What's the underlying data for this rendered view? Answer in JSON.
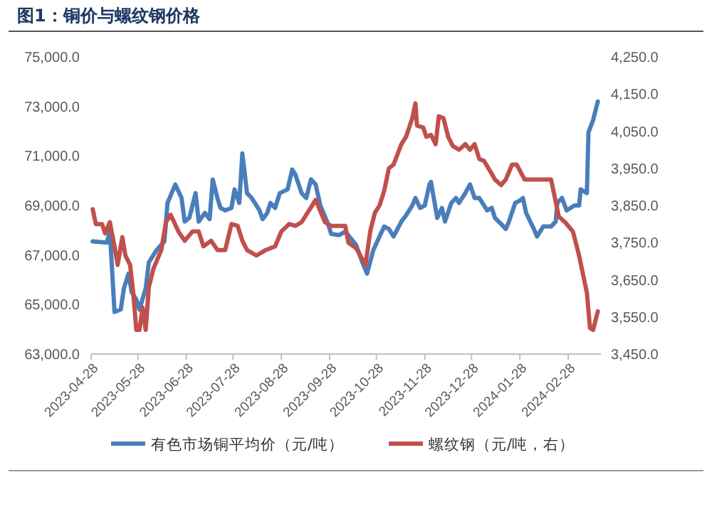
{
  "chart_data": {
    "type": "line",
    "title": "图1：铜价与螺纹钢价格",
    "legend": "bottom",
    "xlim": [
      "2023-04-28",
      "2024-03-20"
    ],
    "xticks": [
      "2023-04-28",
      "2023-05-28",
      "2023-06-28",
      "2023-07-28",
      "2023-08-28",
      "2023-09-28",
      "2023-10-28",
      "2023-11-28",
      "2023-12-28",
      "2024-01-28",
      "2024-02-28"
    ],
    "ylim": [
      63000,
      75000
    ],
    "yticks": [
      {
        "value": 63000,
        "label": "63,000.0"
      },
      {
        "value": 65000,
        "label": "65,000.0"
      },
      {
        "value": 67000,
        "label": "67,000.0"
      },
      {
        "value": 69000,
        "label": "69,000.0"
      },
      {
        "value": 71000,
        "label": "71,000.0"
      },
      {
        "value": 73000,
        "label": "73,000.0"
      },
      {
        "value": 75000,
        "label": "75,000.0"
      }
    ],
    "y2lim": [
      3450,
      4250
    ],
    "y2ticks": [
      {
        "value": 3450,
        "label": "3,450.0"
      },
      {
        "value": 3550,
        "label": "3,550.0"
      },
      {
        "value": 3650,
        "label": "3,650.0"
      },
      {
        "value": 3750,
        "label": "3,750.0"
      },
      {
        "value": 3850,
        "label": "3,850.0"
      },
      {
        "value": 3950,
        "label": "3,950.0"
      },
      {
        "value": 4050,
        "label": "4,050.0"
      },
      {
        "value": 4150,
        "label": "4,150.0"
      },
      {
        "value": 4250,
        "label": "4,250.0"
      }
    ],
    "series": [
      {
        "name": "有色市场铜平均价（元/吨）",
        "color": "#4a7ebb",
        "x": [
          "2023-04-29",
          "2023-05-08",
          "2023-05-10",
          "2023-05-13",
          "2023-05-17",
          "2023-05-19",
          "2023-05-22",
          "2023-05-24",
          "2023-05-27",
          "2023-05-29",
          "2023-06-02",
          "2023-06-04",
          "2023-06-09",
          "2023-06-14",
          "2023-06-16",
          "2023-06-21",
          "2023-06-25",
          "2023-06-27",
          "2023-06-30",
          "2023-07-04",
          "2023-07-06",
          "2023-07-10",
          "2023-07-13",
          "2023-07-15",
          "2023-07-18",
          "2023-07-20",
          "2023-07-23",
          "2023-07-27",
          "2023-07-29",
          "2023-08-01",
          "2023-08-03",
          "2023-08-06",
          "2023-08-09",
          "2023-08-14",
          "2023-08-16",
          "2023-08-19",
          "2023-08-21",
          "2023-08-24",
          "2023-08-27",
          "2023-09-01",
          "2023-09-04",
          "2023-09-06",
          "2023-09-10",
          "2023-09-13",
          "2023-09-16",
          "2023-09-19",
          "2023-09-22",
          "2023-09-27",
          "2023-09-29",
          "2023-10-04",
          "2023-10-08",
          "2023-10-15",
          "2023-10-19",
          "2023-10-22",
          "2023-10-26",
          "2023-10-30",
          "2023-11-02",
          "2023-11-05",
          "2023-11-08",
          "2023-11-13",
          "2023-11-16",
          "2023-11-20",
          "2023-11-22",
          "2023-11-25",
          "2023-11-28",
          "2023-12-01",
          "2023-12-02",
          "2023-12-06",
          "2023-12-09",
          "2023-12-11",
          "2023-12-15",
          "2023-12-18",
          "2023-12-20",
          "2023-12-24",
          "2023-12-27",
          "2023-12-30",
          "2024-01-02",
          "2024-01-07",
          "2024-01-10",
          "2024-01-12",
          "2024-01-16",
          "2024-01-19",
          "2024-01-21",
          "2024-01-25",
          "2024-01-28",
          "2024-01-30",
          "2024-02-01",
          "2024-02-06",
          "2024-02-08",
          "2024-02-12",
          "2024-02-17",
          "2024-02-20",
          "2024-02-21",
          "2024-02-24",
          "2024-02-27",
          "2024-03-03",
          "2024-03-06",
          "2024-03-07",
          "2024-03-11",
          "2024-03-12",
          "2024-03-15",
          "2024-03-18"
        ],
        "values": [
          67550,
          67500,
          67950,
          64700,
          64800,
          65650,
          66250,
          65500,
          65200,
          64800,
          65650,
          66700,
          67200,
          67550,
          69100,
          69850,
          69300,
          68350,
          68500,
          69500,
          68350,
          68700,
          68450,
          70050,
          69300,
          68900,
          68800,
          68900,
          69650,
          69100,
          71100,
          69500,
          69300,
          68800,
          68450,
          68700,
          69100,
          68900,
          69500,
          69650,
          70450,
          70250,
          69500,
          69300,
          70050,
          69850,
          69000,
          68250,
          67850,
          67800,
          67950,
          67400,
          66700,
          66250,
          67200,
          67750,
          68150,
          68050,
          67750,
          68350,
          68600,
          69000,
          69300,
          68900,
          69000,
          69850,
          69950,
          68500,
          68900,
          68350,
          69100,
          69300,
          69100,
          69500,
          69850,
          69300,
          69300,
          68800,
          68900,
          68500,
          68250,
          68050,
          68350,
          69100,
          69200,
          69300,
          68700,
          68050,
          67750,
          68150,
          68150,
          68350,
          69100,
          69300,
          68800,
          69000,
          69000,
          69650,
          69500,
          71950,
          72450,
          73200
        ]
      },
      {
        "name": "螺纹钢（元/吨，右）",
        "color": "#c0504d",
        "axis": "y2",
        "x": [
          "2023-04-29",
          "2023-05-01",
          "2023-05-05",
          "2023-05-07",
          "2023-05-10",
          "2023-05-13",
          "2023-05-15",
          "2023-05-18",
          "2023-05-20",
          "2023-05-23",
          "2023-05-25",
          "2023-05-27",
          "2023-05-29",
          "2023-05-31",
          "2023-06-02",
          "2023-06-04",
          "2023-06-07",
          "2023-06-12",
          "2023-06-15",
          "2023-06-18",
          "2023-06-23",
          "2023-06-27",
          "2023-07-02",
          "2023-07-06",
          "2023-07-09",
          "2023-07-14",
          "2023-07-18",
          "2023-07-23",
          "2023-07-27",
          "2023-07-31",
          "2023-08-03",
          "2023-08-06",
          "2023-08-12",
          "2023-08-18",
          "2023-08-24",
          "2023-08-28",
          "2023-09-02",
          "2023-09-06",
          "2023-09-10",
          "2023-09-16",
          "2023-09-19",
          "2023-09-25",
          "2023-09-29",
          "2023-10-08",
          "2023-10-10",
          "2023-10-15",
          "2023-10-21",
          "2023-10-24",
          "2023-10-27",
          "2023-10-30",
          "2023-11-02",
          "2023-11-05",
          "2023-11-08",
          "2023-11-13",
          "2023-11-16",
          "2023-11-20",
          "2023-11-22",
          "2023-11-23",
          "2023-11-27",
          "2023-11-29",
          "2023-12-02",
          "2023-12-05",
          "2023-12-07",
          "2023-12-10",
          "2023-12-13",
          "2023-12-16",
          "2023-12-20",
          "2023-12-24",
          "2023-12-27",
          "2023-12-30",
          "2024-01-02",
          "2024-01-05",
          "2024-01-10",
          "2024-01-12",
          "2024-01-16",
          "2024-01-19",
          "2024-01-23",
          "2024-01-26",
          "2024-01-31",
          "2024-02-08",
          "2024-02-17",
          "2024-02-19",
          "2024-02-22",
          "2024-02-26",
          "2024-03-02",
          "2024-03-06",
          "2024-03-11",
          "2024-03-13",
          "2024-03-15",
          "2024-03-18"
        ],
        "values": [
          3840,
          3800,
          3800,
          3775,
          3805,
          3740,
          3690,
          3765,
          3715,
          3690,
          3615,
          3515,
          3515,
          3575,
          3515,
          3630,
          3680,
          3730,
          3805,
          3825,
          3780,
          3755,
          3780,
          3780,
          3740,
          3755,
          3730,
          3730,
          3800,
          3795,
          3755,
          3730,
          3715,
          3730,
          3740,
          3780,
          3800,
          3795,
          3805,
          3845,
          3865,
          3805,
          3795,
          3795,
          3750,
          3735,
          3690,
          3780,
          3830,
          3850,
          3890,
          3950,
          3960,
          4015,
          4035,
          4085,
          4125,
          4065,
          4060,
          4035,
          4040,
          4015,
          4090,
          4085,
          4035,
          4010,
          4000,
          4015,
          4000,
          4015,
          3975,
          3970,
          3935,
          3920,
          3905,
          3920,
          3960,
          3960,
          3920,
          3920,
          3920,
          3880,
          3820,
          3805,
          3780,
          3715,
          3615,
          3520,
          3515,
          3565
        ]
      }
    ]
  }
}
